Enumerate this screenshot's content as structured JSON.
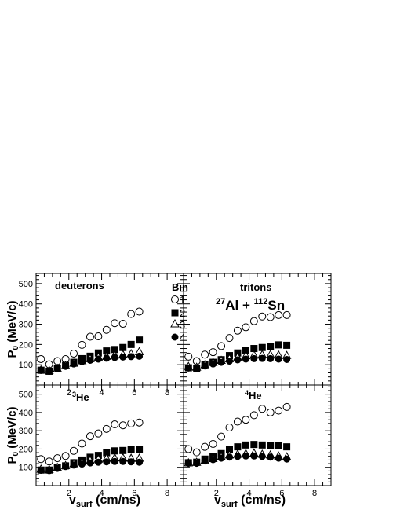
{
  "axis": {
    "y_label_main": "P",
    "y_label_sub": "0",
    "y_label_unit": " (MeV/c)",
    "x_label_main": "v",
    "x_label_sub": "surf",
    "x_label_unit": " (cm/ns)"
  },
  "legend": {
    "title": "Bin",
    "entries": [
      {
        "label": "1",
        "marker": "open-circle"
      },
      {
        "label": "2",
        "marker": "filled-square"
      },
      {
        "label": "3",
        "marker": "open-triangle"
      },
      {
        "label": "4",
        "marker": "filled-circle"
      }
    ]
  },
  "reaction": {
    "mass1": "27",
    "elem1": "Al + ",
    "mass2": "112",
    "elem2": "Sn"
  },
  "chart_data": [
    {
      "type": "scatter",
      "panel": "top-left",
      "title_mass": "",
      "title_text": "deuterons",
      "xlim": [
        0,
        9
      ],
      "ylim": [
        0,
        550
      ],
      "x_ticks": [
        "2",
        "4",
        "6",
        "8"
      ],
      "y_ticks": [
        "100",
        "200",
        "300",
        "400",
        "500"
      ],
      "x": [
        0.3,
        0.8,
        1.3,
        1.8,
        2.3,
        2.8,
        3.3,
        3.8,
        4.3,
        4.8,
        5.3,
        5.8,
        6.3
      ],
      "series": [
        {
          "name": "1",
          "values": [
            128,
            102,
            118,
            128,
            155,
            198,
            238,
            240,
            272,
            305,
            302,
            350,
            362
          ]
        },
        {
          "name": "2",
          "values": [
            73,
            68,
            80,
            97,
            112,
            130,
            142,
            158,
            168,
            175,
            185,
            200,
            222
          ]
        },
        {
          "name": "3",
          "values": [
            75,
            72,
            82,
            96,
            108,
            120,
            130,
            138,
            142,
            148,
            150,
            155,
            165
          ]
        },
        {
          "name": "4",
          "values": [
            72,
            68,
            80,
            92,
            104,
            115,
            122,
            128,
            132,
            136,
            138,
            140,
            142
          ]
        }
      ]
    },
    {
      "type": "scatter",
      "panel": "top-right",
      "title_mass": "",
      "title_text": "tritons",
      "xlim": [
        0,
        9
      ],
      "ylim": [
        0,
        550
      ],
      "x_ticks": [],
      "y_ticks": [],
      "x": [
        0.3,
        0.8,
        1.3,
        1.8,
        2.3,
        2.8,
        3.3,
        3.8,
        4.3,
        4.8,
        5.3,
        5.8,
        6.3
      ],
      "series": [
        {
          "name": "1",
          "values": [
            140,
            118,
            150,
            162,
            192,
            232,
            268,
            285,
            315,
            338,
            335,
            345,
            345
          ]
        },
        {
          "name": "2",
          "values": [
            85,
            82,
            100,
            112,
            125,
            145,
            158,
            172,
            180,
            185,
            190,
            198,
            196
          ]
        },
        {
          "name": "3",
          "values": [
            92,
            88,
            100,
            112,
            122,
            130,
            138,
            145,
            148,
            150,
            150,
            148,
            146
          ]
        },
        {
          "name": "4",
          "values": [
            84,
            80,
            94,
            104,
            112,
            118,
            124,
            128,
            130,
            131,
            130,
            128,
            126
          ]
        }
      ]
    },
    {
      "type": "scatter",
      "panel": "bottom-left",
      "title_mass": "3",
      "title_text": "He",
      "xlim": [
        0,
        9
      ],
      "ylim": [
        0,
        550
      ],
      "x_ticks": [
        "2",
        "4",
        "6",
        "8"
      ],
      "y_ticks": [
        "100",
        "200",
        "300",
        "400",
        "500"
      ],
      "x": [
        0.3,
        0.8,
        1.3,
        1.8,
        2.3,
        2.8,
        3.3,
        3.8,
        4.3,
        4.8,
        5.3,
        5.8,
        6.3
      ],
      "series": [
        {
          "name": "1",
          "values": [
            145,
            132,
            150,
            162,
            190,
            230,
            270,
            285,
            310,
            335,
            330,
            340,
            345
          ]
        },
        {
          "name": "2",
          "values": [
            85,
            85,
            98,
            108,
            125,
            140,
            155,
            165,
            180,
            190,
            192,
            198,
            198
          ]
        },
        {
          "name": "3",
          "values": [
            90,
            88,
            100,
            110,
            120,
            130,
            138,
            145,
            150,
            152,
            152,
            150,
            150
          ]
        },
        {
          "name": "4",
          "values": [
            84,
            82,
            94,
            104,
            112,
            118,
            124,
            128,
            130,
            132,
            132,
            130,
            128
          ]
        }
      ]
    },
    {
      "type": "scatter",
      "panel": "bottom-right",
      "title_mass": "4",
      "title_text": "He",
      "xlim": [
        0,
        9
      ],
      "ylim": [
        0,
        550
      ],
      "x_ticks": [
        "2",
        "4",
        "6",
        "8"
      ],
      "y_ticks": [],
      "x": [
        0.3,
        0.8,
        1.3,
        1.8,
        2.3,
        2.8,
        3.3,
        3.8,
        4.3,
        4.8,
        5.3,
        5.8,
        6.3
      ],
      "series": [
        {
          "name": "1",
          "values": [
            200,
            182,
            212,
            228,
            268,
            318,
            350,
            360,
            385,
            420,
            400,
            410,
            430
          ]
        },
        {
          "name": "2",
          "values": [
            125,
            128,
            145,
            158,
            175,
            198,
            212,
            222,
            225,
            222,
            220,
            218,
            212
          ]
        },
        {
          "name": "3",
          "values": [
            125,
            128,
            138,
            148,
            158,
            168,
            172,
            175,
            178,
            172,
            168,
            162,
            158
          ]
        },
        {
          "name": "4",
          "values": [
            122,
            122,
            135,
            142,
            150,
            156,
            160,
            162,
            162,
            160,
            156,
            150,
            145
          ]
        }
      ]
    }
  ]
}
